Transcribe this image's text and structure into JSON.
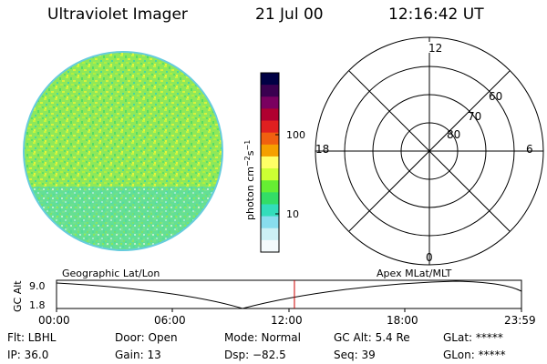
{
  "header": {
    "title": "Ultraviolet Imager",
    "date": "21 Jul 00",
    "time": "12:16:42 UT"
  },
  "colorbar": {
    "label": "photon cm-2s-1",
    "ticks": [
      "100",
      "10"
    ],
    "colors": [
      "#000044",
      "#3a0050",
      "#7a0060",
      "#b00030",
      "#e02020",
      "#f06010",
      "#f5a000",
      "#ffff66",
      "#ccff33",
      "#66ee33",
      "#33dd66",
      "#33ddbb",
      "#88ddee",
      "#ccf0f5",
      "#f4fafc"
    ]
  },
  "polar": {
    "mlt_labels": {
      "top": "12",
      "left": "18",
      "right": "6",
      "bottom": "0"
    },
    "lat_labels": [
      "60",
      "70",
      "80"
    ]
  },
  "timeline": {
    "ylabel": "GC Alt",
    "yticks": [
      "9.0",
      "1.8"
    ],
    "left_title": "Geographic Lat/Lon",
    "right_title": "Apex MLat/MLT",
    "xticks": [
      "00:00",
      "06:00",
      "12:00",
      "18:00",
      "23:59"
    ],
    "current_time_hours": 12.28
  },
  "info": {
    "flt": "Flt: LBHL",
    "ip": "IP: 36.0",
    "door": "Door: Open",
    "gain": "Gain: 13",
    "mode": "Mode: Normal",
    "dsp": "Dsp:  −82.5",
    "gcalt": "GC Alt: 5.4 Re",
    "seq": "Seq: 39",
    "glat": "GLat: *****",
    "glon": "GLon: *****"
  }
}
